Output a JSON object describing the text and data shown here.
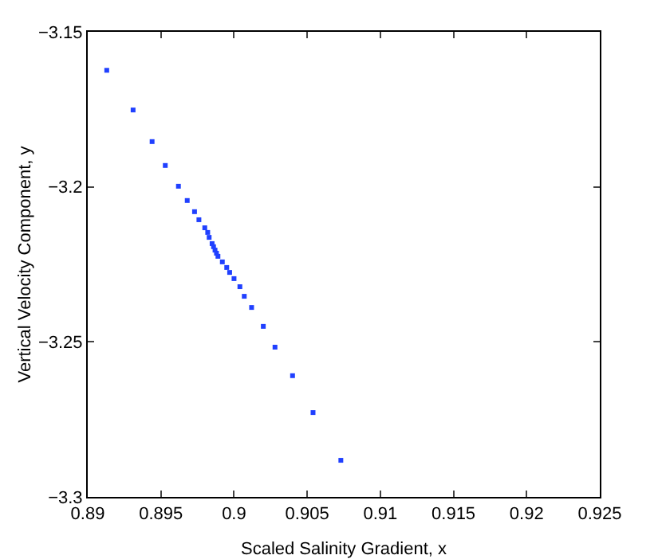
{
  "chart_data": {
    "type": "scatter",
    "xlabel": "Scaled Salinity Gradient, x",
    "ylabel": "Vertical Velocity Component, y",
    "x": [
      0.8913,
      0.8931,
      0.8944,
      0.8953,
      0.8962,
      0.8968,
      0.8973,
      0.8976,
      0.898,
      0.8982,
      0.8983,
      0.8985,
      0.8986,
      0.8987,
      0.8988,
      0.8989,
      0.8992,
      0.8995,
      0.8997,
      0.9,
      0.9004,
      0.9007,
      0.9012,
      0.902,
      0.9028,
      0.904,
      0.9054,
      0.9073
    ],
    "series": [
      {
        "color": "#2040ff",
        "values": [
          -3.1624,
          -3.1752,
          -3.1854,
          -3.1931,
          -3.1998,
          -3.2044,
          -3.208,
          -3.2106,
          -3.2132,
          -3.2147,
          -3.2163,
          -3.2183,
          -3.2193,
          -3.2204,
          -3.2214,
          -3.2224,
          -3.2242,
          -3.226,
          -3.2276,
          -3.2296,
          -3.2322,
          -3.2353,
          -3.2389,
          -3.245,
          -3.2517,
          -3.2609,
          -3.2728,
          -3.2882
        ]
      }
    ],
    "xlim": [
      0.89,
      0.925
    ],
    "xticks": [
      0.89,
      0.895,
      0.9,
      0.905,
      0.91,
      0.915,
      0.92,
      0.925
    ],
    "ylim": [
      -3.3,
      -3.15
    ],
    "yticks": [
      -3.3,
      -3.25,
      -3.2,
      -3.15
    ],
    "marker": "square",
    "grid": false
  }
}
